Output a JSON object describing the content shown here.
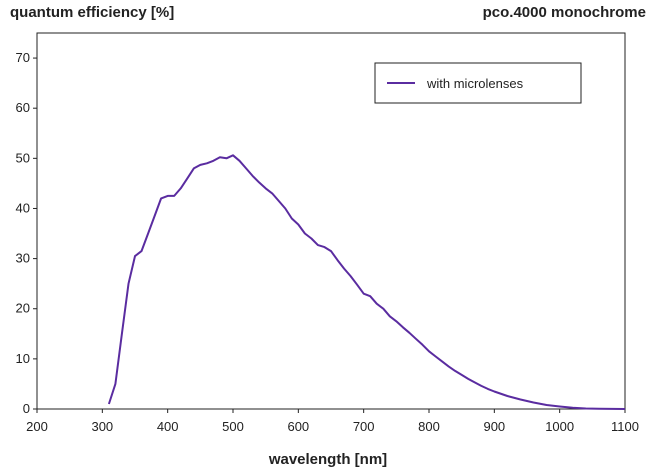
{
  "chart_data": {
    "type": "line",
    "title": "quantum efficiency [%]",
    "subtitle": "pco.4000 monochrome",
    "xlabel": "wavelength [nm]",
    "ylabel": "quantum efficiency [%]",
    "xlim": [
      200,
      1100
    ],
    "ylim": [
      0,
      75
    ],
    "xticks": [
      200,
      300,
      400,
      500,
      600,
      700,
      800,
      900,
      1000,
      1100
    ],
    "yticks": [
      0,
      10,
      20,
      30,
      40,
      50,
      60,
      70
    ],
    "legend_position": "top-right",
    "series": [
      {
        "name": "with microlenses",
        "color": "#5a2ca0",
        "x": [
          310,
          320,
          330,
          340,
          350,
          360,
          370,
          380,
          390,
          400,
          410,
          420,
          430,
          440,
          450,
          460,
          470,
          480,
          490,
          500,
          510,
          520,
          530,
          540,
          550,
          560,
          570,
          580,
          590,
          600,
          610,
          620,
          630,
          640,
          650,
          660,
          670,
          680,
          690,
          700,
          710,
          720,
          730,
          740,
          750,
          760,
          770,
          780,
          790,
          800,
          810,
          820,
          830,
          840,
          850,
          860,
          870,
          880,
          890,
          900,
          920,
          940,
          960,
          980,
          1000,
          1020,
          1040,
          1060,
          1080,
          1100
        ],
        "values": [
          1,
          5,
          15,
          25,
          30.5,
          31.5,
          35,
          38.5,
          42,
          42.5,
          42.5,
          44,
          46,
          48,
          48.7,
          49,
          49.5,
          50.2,
          50,
          50.6,
          49.5,
          48,
          46.5,
          45.2,
          44,
          43,
          41.5,
          40,
          38,
          36.8,
          35,
          34,
          32.7,
          32.3,
          31.5,
          29.7,
          28,
          26.5,
          24.8,
          23,
          22.5,
          21,
          20,
          18.5,
          17.5,
          16.3,
          15.2,
          14,
          12.8,
          11.5,
          10.5,
          9.5,
          8.5,
          7.6,
          6.8,
          6,
          5.3,
          4.6,
          4,
          3.5,
          2.6,
          1.9,
          1.3,
          0.8,
          0.5,
          0.25,
          0.1,
          0.05,
          0.02,
          0
        ]
      }
    ]
  }
}
